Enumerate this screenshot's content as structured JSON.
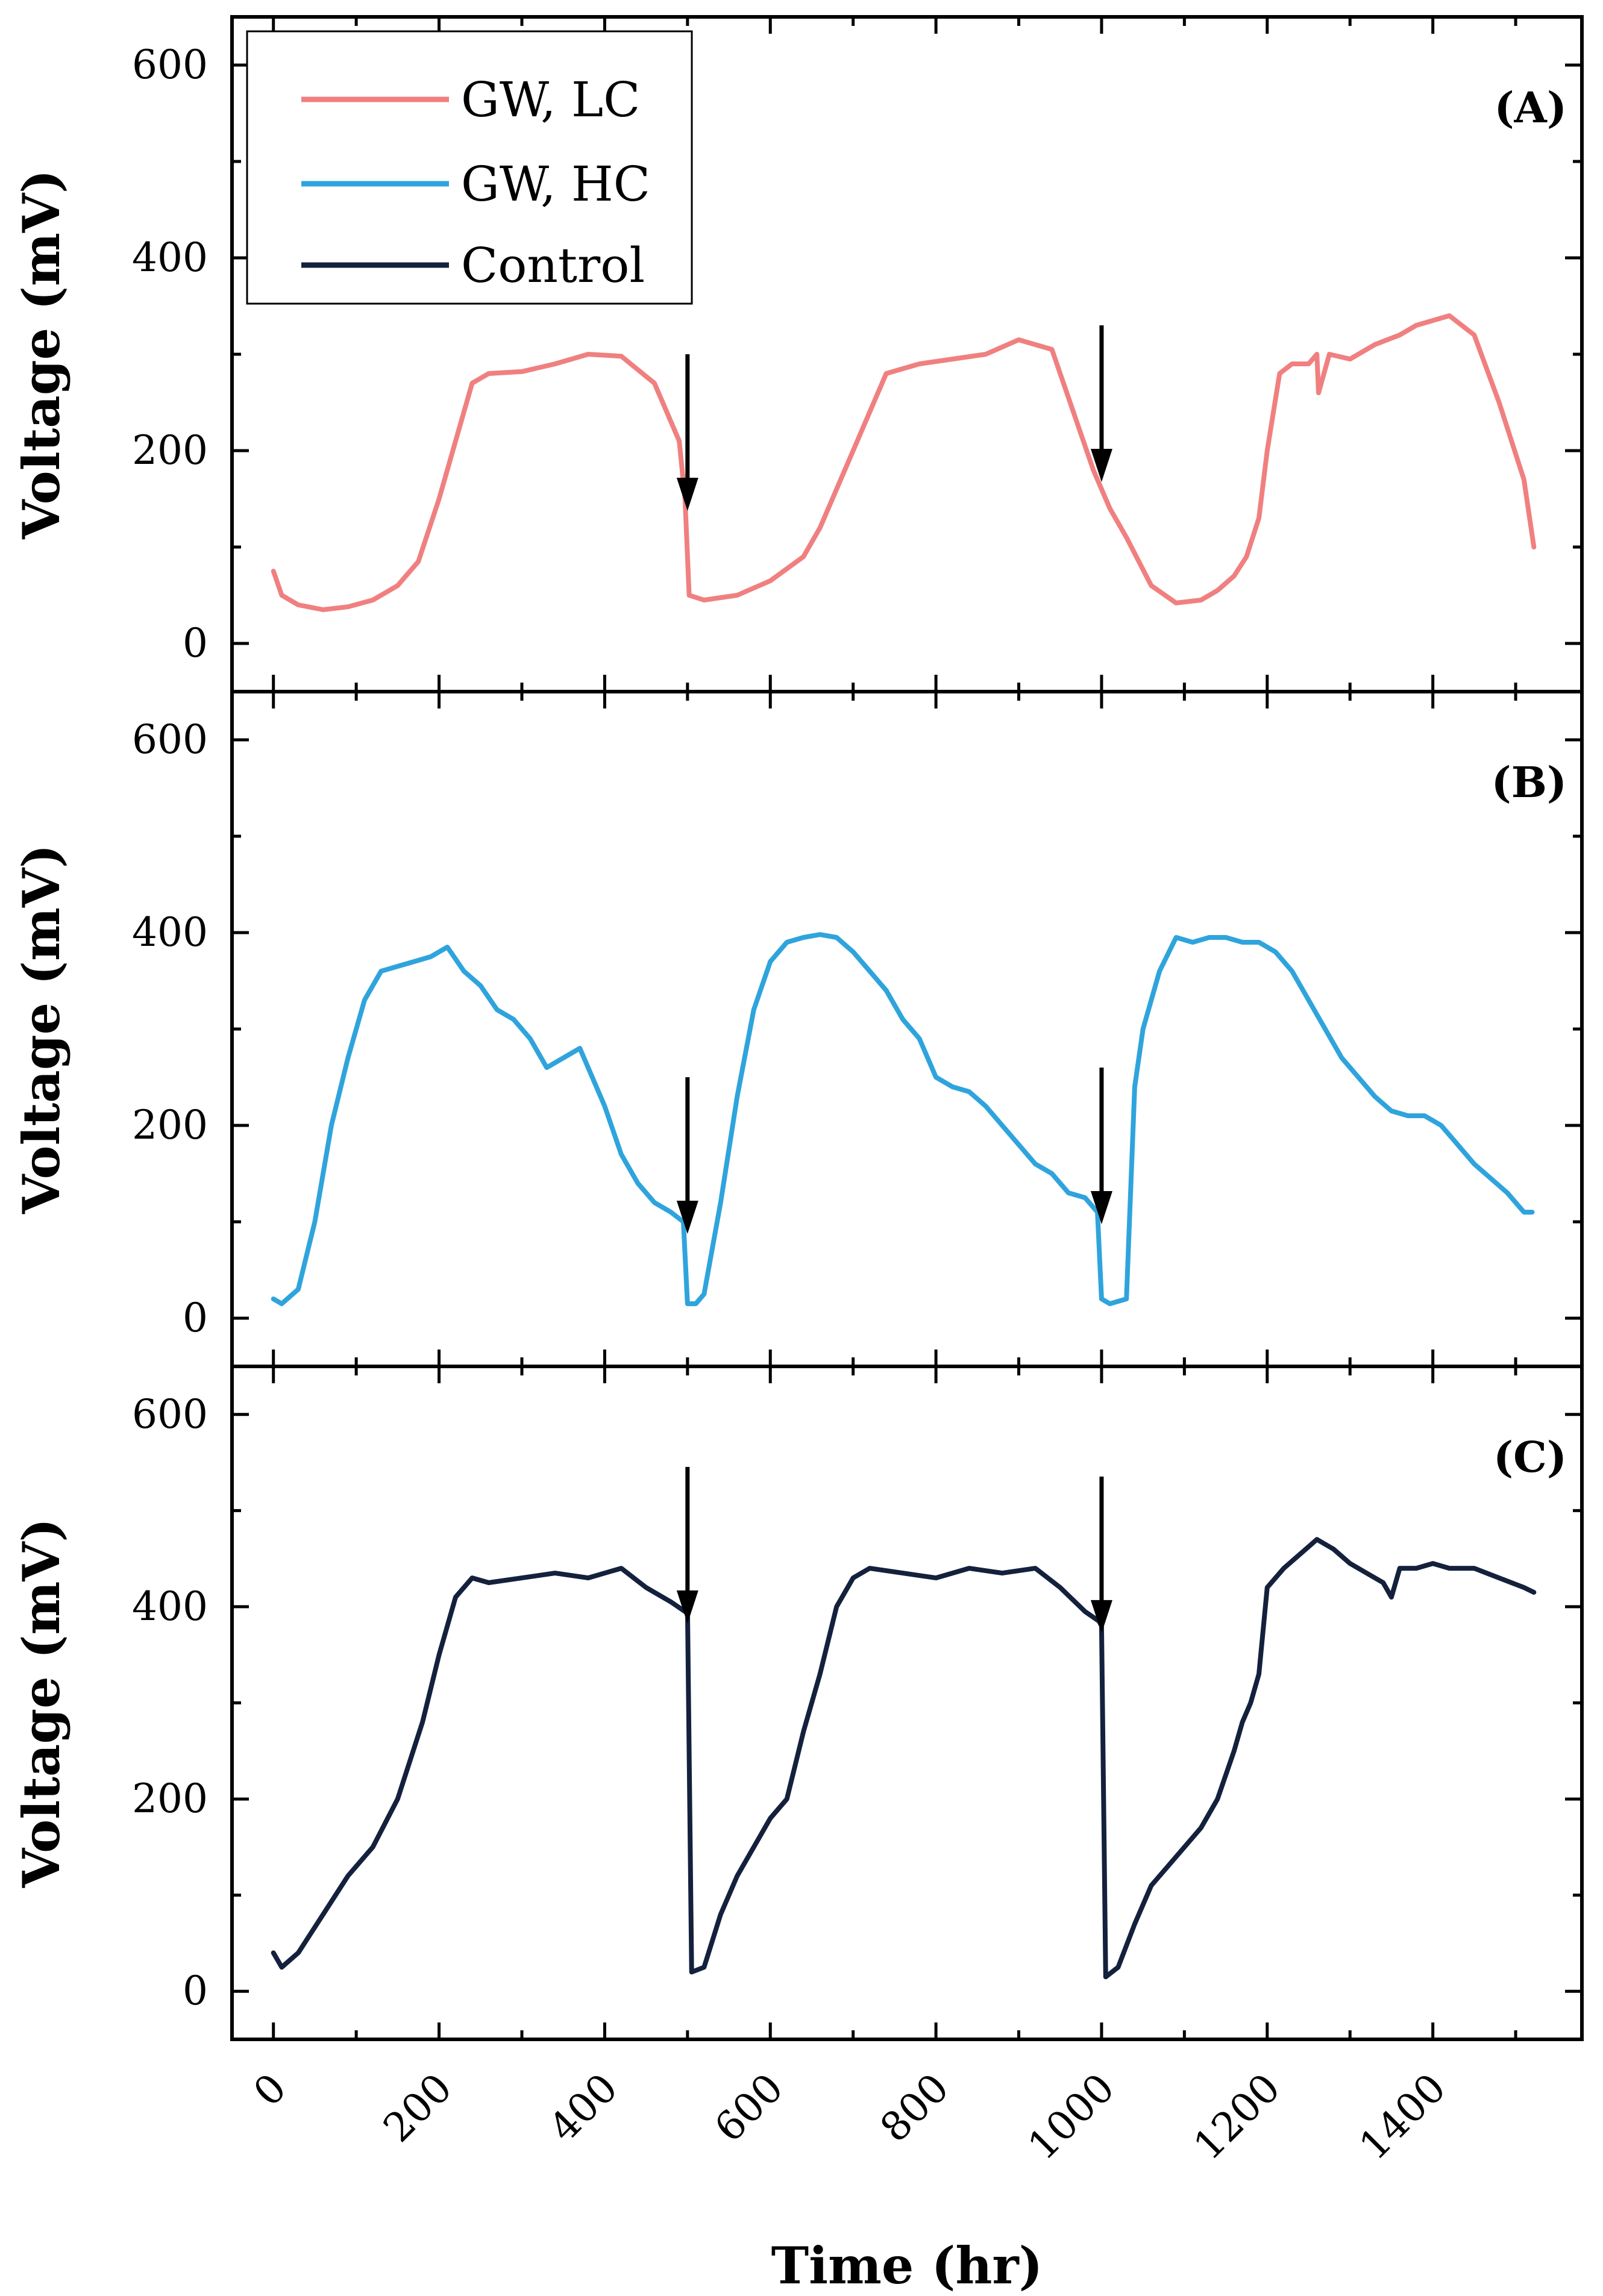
{
  "chart_data": {
    "type": "line",
    "xlabel": "Time (hr)",
    "ylabel": "Voltage (mV)",
    "xlim": [
      -50,
      1580
    ],
    "ylim": [
      -50,
      650
    ],
    "x_ticks": [
      0,
      200,
      400,
      600,
      800,
      1000,
      1200,
      1400
    ],
    "y_ticks": [
      0,
      200,
      400,
      600
    ],
    "legend": [
      {
        "label": "GW, LC",
        "color": "#f08080"
      },
      {
        "label": "GW, HC",
        "color": "#2fa4dc"
      },
      {
        "label": "Control",
        "color": "#14213d"
      }
    ],
    "panels": [
      {
        "tag": "(A)",
        "series_name": "GW, LC",
        "color": "#f08080",
        "arrows_at": [
          500,
          1000
        ],
        "x": [
          0,
          10,
          30,
          60,
          90,
          120,
          150,
          175,
          200,
          220,
          240,
          260,
          300,
          340,
          380,
          420,
          460,
          490,
          497,
          502,
          520,
          560,
          600,
          640,
          660,
          680,
          700,
          740,
          780,
          820,
          860,
          900,
          940,
          970,
          990,
          1010,
          1030,
          1060,
          1090,
          1120,
          1140,
          1160,
          1175,
          1190,
          1200,
          1215,
          1230,
          1250,
          1260,
          1262,
          1275,
          1300,
          1330,
          1360,
          1380,
          1400,
          1420,
          1450,
          1480,
          1510,
          1522
        ],
        "y": [
          75,
          50,
          40,
          35,
          38,
          45,
          60,
          85,
          150,
          210,
          270,
          280,
          282,
          290,
          300,
          298,
          270,
          210,
          150,
          50,
          45,
          50,
          65,
          90,
          120,
          160,
          200,
          280,
          290,
          295,
          300,
          315,
          305,
          230,
          180,
          140,
          110,
          60,
          42,
          45,
          55,
          70,
          90,
          130,
          200,
          280,
          290,
          290,
          300,
          260,
          300,
          295,
          310,
          320,
          330,
          335,
          340,
          320,
          250,
          170,
          100
        ]
      },
      {
        "tag": "(B)",
        "series_name": "GW, HC",
        "color": "#2fa4dc",
        "arrows_at": [
          500,
          1000
        ],
        "x": [
          0,
          10,
          30,
          50,
          70,
          90,
          110,
          130,
          150,
          170,
          190,
          210,
          230,
          250,
          270,
          290,
          310,
          330,
          350,
          370,
          380,
          400,
          420,
          440,
          460,
          480,
          495,
          500,
          510,
          520,
          540,
          560,
          580,
          600,
          620,
          640,
          660,
          680,
          700,
          720,
          740,
          760,
          780,
          800,
          820,
          840,
          860,
          880,
          900,
          920,
          940,
          960,
          980,
          995,
          1000,
          1010,
          1030,
          1040,
          1050,
          1070,
          1090,
          1110,
          1130,
          1150,
          1170,
          1190,
          1210,
          1230,
          1250,
          1270,
          1290,
          1310,
          1330,
          1350,
          1370,
          1390,
          1410,
          1430,
          1450,
          1470,
          1490,
          1510,
          1520
        ],
        "y": [
          20,
          15,
          30,
          100,
          200,
          270,
          330,
          360,
          365,
          370,
          375,
          385,
          360,
          345,
          320,
          310,
          290,
          260,
          270,
          280,
          260,
          220,
          170,
          140,
          120,
          110,
          100,
          15,
          15,
          25,
          120,
          230,
          320,
          370,
          390,
          395,
          398,
          395,
          380,
          360,
          340,
          310,
          290,
          250,
          240,
          235,
          220,
          200,
          180,
          160,
          150,
          130,
          125,
          110,
          20,
          15,
          20,
          240,
          300,
          360,
          395,
          390,
          395,
          395,
          390,
          390,
          380,
          360,
          330,
          300,
          270,
          250,
          230,
          215,
          210,
          210,
          200,
          180,
          160,
          145,
          130,
          110,
          110
        ]
      },
      {
        "tag": "(C)",
        "series_name": "Control",
        "color": "#14213d",
        "arrows_at": [
          500,
          1000
        ],
        "x": [
          0,
          10,
          30,
          60,
          90,
          120,
          150,
          180,
          200,
          220,
          240,
          260,
          300,
          340,
          380,
          420,
          450,
          480,
          497,
          500,
          505,
          520,
          540,
          560,
          580,
          600,
          620,
          640,
          660,
          680,
          700,
          720,
          760,
          800,
          840,
          880,
          920,
          950,
          980,
          997,
          1000,
          1005,
          1020,
          1040,
          1060,
          1080,
          1100,
          1120,
          1140,
          1160,
          1170,
          1180,
          1190,
          1200,
          1220,
          1240,
          1260,
          1280,
          1300,
          1320,
          1340,
          1350,
          1360,
          1380,
          1400,
          1420,
          1450,
          1480,
          1510,
          1522
        ],
        "y": [
          40,
          25,
          40,
          80,
          120,
          150,
          200,
          280,
          350,
          410,
          430,
          425,
          430,
          435,
          430,
          440,
          420,
          405,
          395,
          400,
          20,
          25,
          80,
          120,
          150,
          180,
          200,
          270,
          330,
          400,
          430,
          440,
          435,
          430,
          440,
          435,
          440,
          420,
          395,
          385,
          380,
          15,
          25,
          70,
          110,
          130,
          150,
          170,
          200,
          250,
          280,
          300,
          330,
          420,
          440,
          455,
          470,
          460,
          445,
          435,
          425,
          410,
          440,
          440,
          445,
          440,
          440,
          430,
          420,
          415
        ]
      }
    ]
  }
}
